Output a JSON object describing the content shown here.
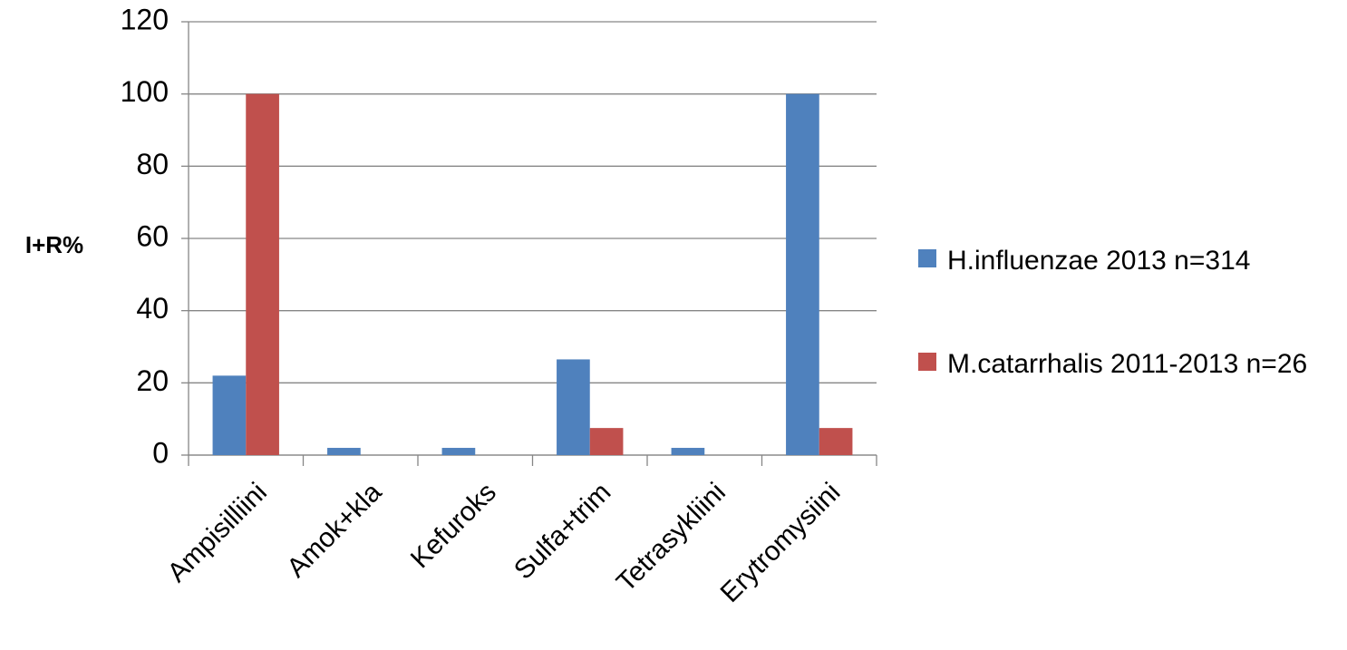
{
  "chart_data": {
    "type": "bar",
    "ylabel": "I+R%",
    "categories": [
      "Ampisilliini",
      "Amok+kla",
      "Kefuroks",
      "Sulfa+trim",
      "Tetrasykliini",
      "Erytromysiini"
    ],
    "series": [
      {
        "name": "H.influenzae 2013 n=314",
        "color": "#4f81bd",
        "values": [
          22,
          2,
          2,
          26.5,
          2,
          100
        ]
      },
      {
        "name": "M.catarrhalis 2011-2013 n=26",
        "color": "#c0504d",
        "values": [
          100,
          0,
          0,
          7.5,
          0,
          7.5
        ]
      }
    ],
    "ylim": [
      0,
      120
    ],
    "yticks": [
      0,
      20,
      40,
      60,
      80,
      100,
      120
    ],
    "grid": true,
    "legend": "right"
  }
}
